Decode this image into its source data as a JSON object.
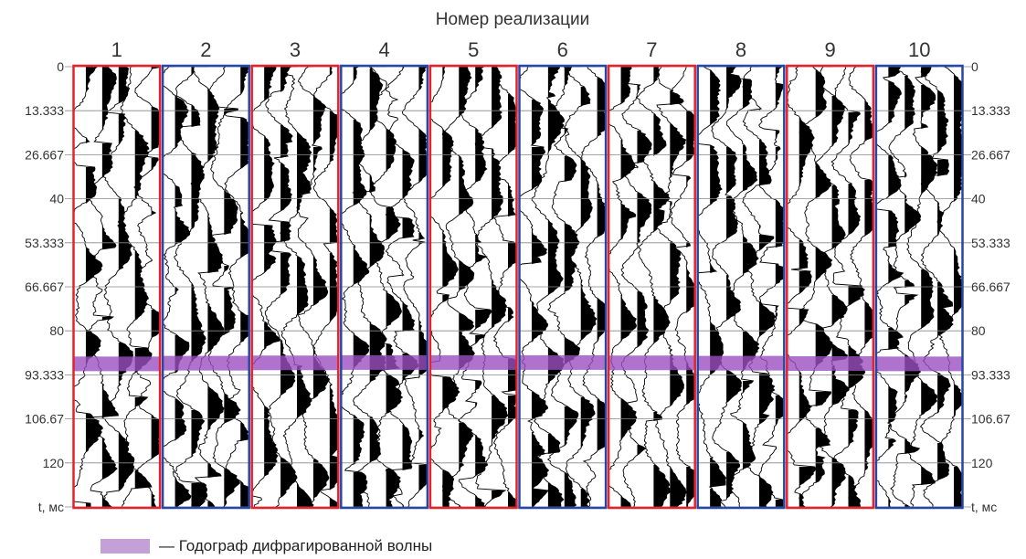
{
  "chart_data": {
    "type": "seismic",
    "title": "Номер реализации",
    "categories": [
      "1",
      "2",
      "3",
      "4",
      "5",
      "6",
      "7",
      "8",
      "9",
      "10"
    ],
    "panel_colors": [
      "#e8202a",
      "#2647a8",
      "#e8202a",
      "#2647a8",
      "#e8202a",
      "#2647a8",
      "#e8202a",
      "#2647a8",
      "#e8202a",
      "#2647a8"
    ],
    "y_ticks": [
      "0",
      "13.333",
      "26.667",
      "40",
      "53.333",
      "66.667",
      "80",
      "93.333",
      "106.67",
      "120",
      "t, мс"
    ],
    "y_tick_values": [
      0,
      13.333,
      26.667,
      40,
      53.333,
      66.667,
      80,
      93.333,
      106.67,
      120,
      133.333
    ],
    "ylim": [
      0,
      133.333
    ],
    "ylabel": "t, мс",
    "traces_per_panel": 5,
    "diffracted_wave_time": [
      90,
      89.8,
      89.7,
      89.6,
      89.6,
      89.6,
      89.7,
      89.8,
      89.9,
      90
    ],
    "highlight_color": "#9b4fc0",
    "grid": true
  },
  "legend": {
    "label": "— Годограф дифрагированной волны",
    "swatch_color": "#c4a0d8"
  }
}
